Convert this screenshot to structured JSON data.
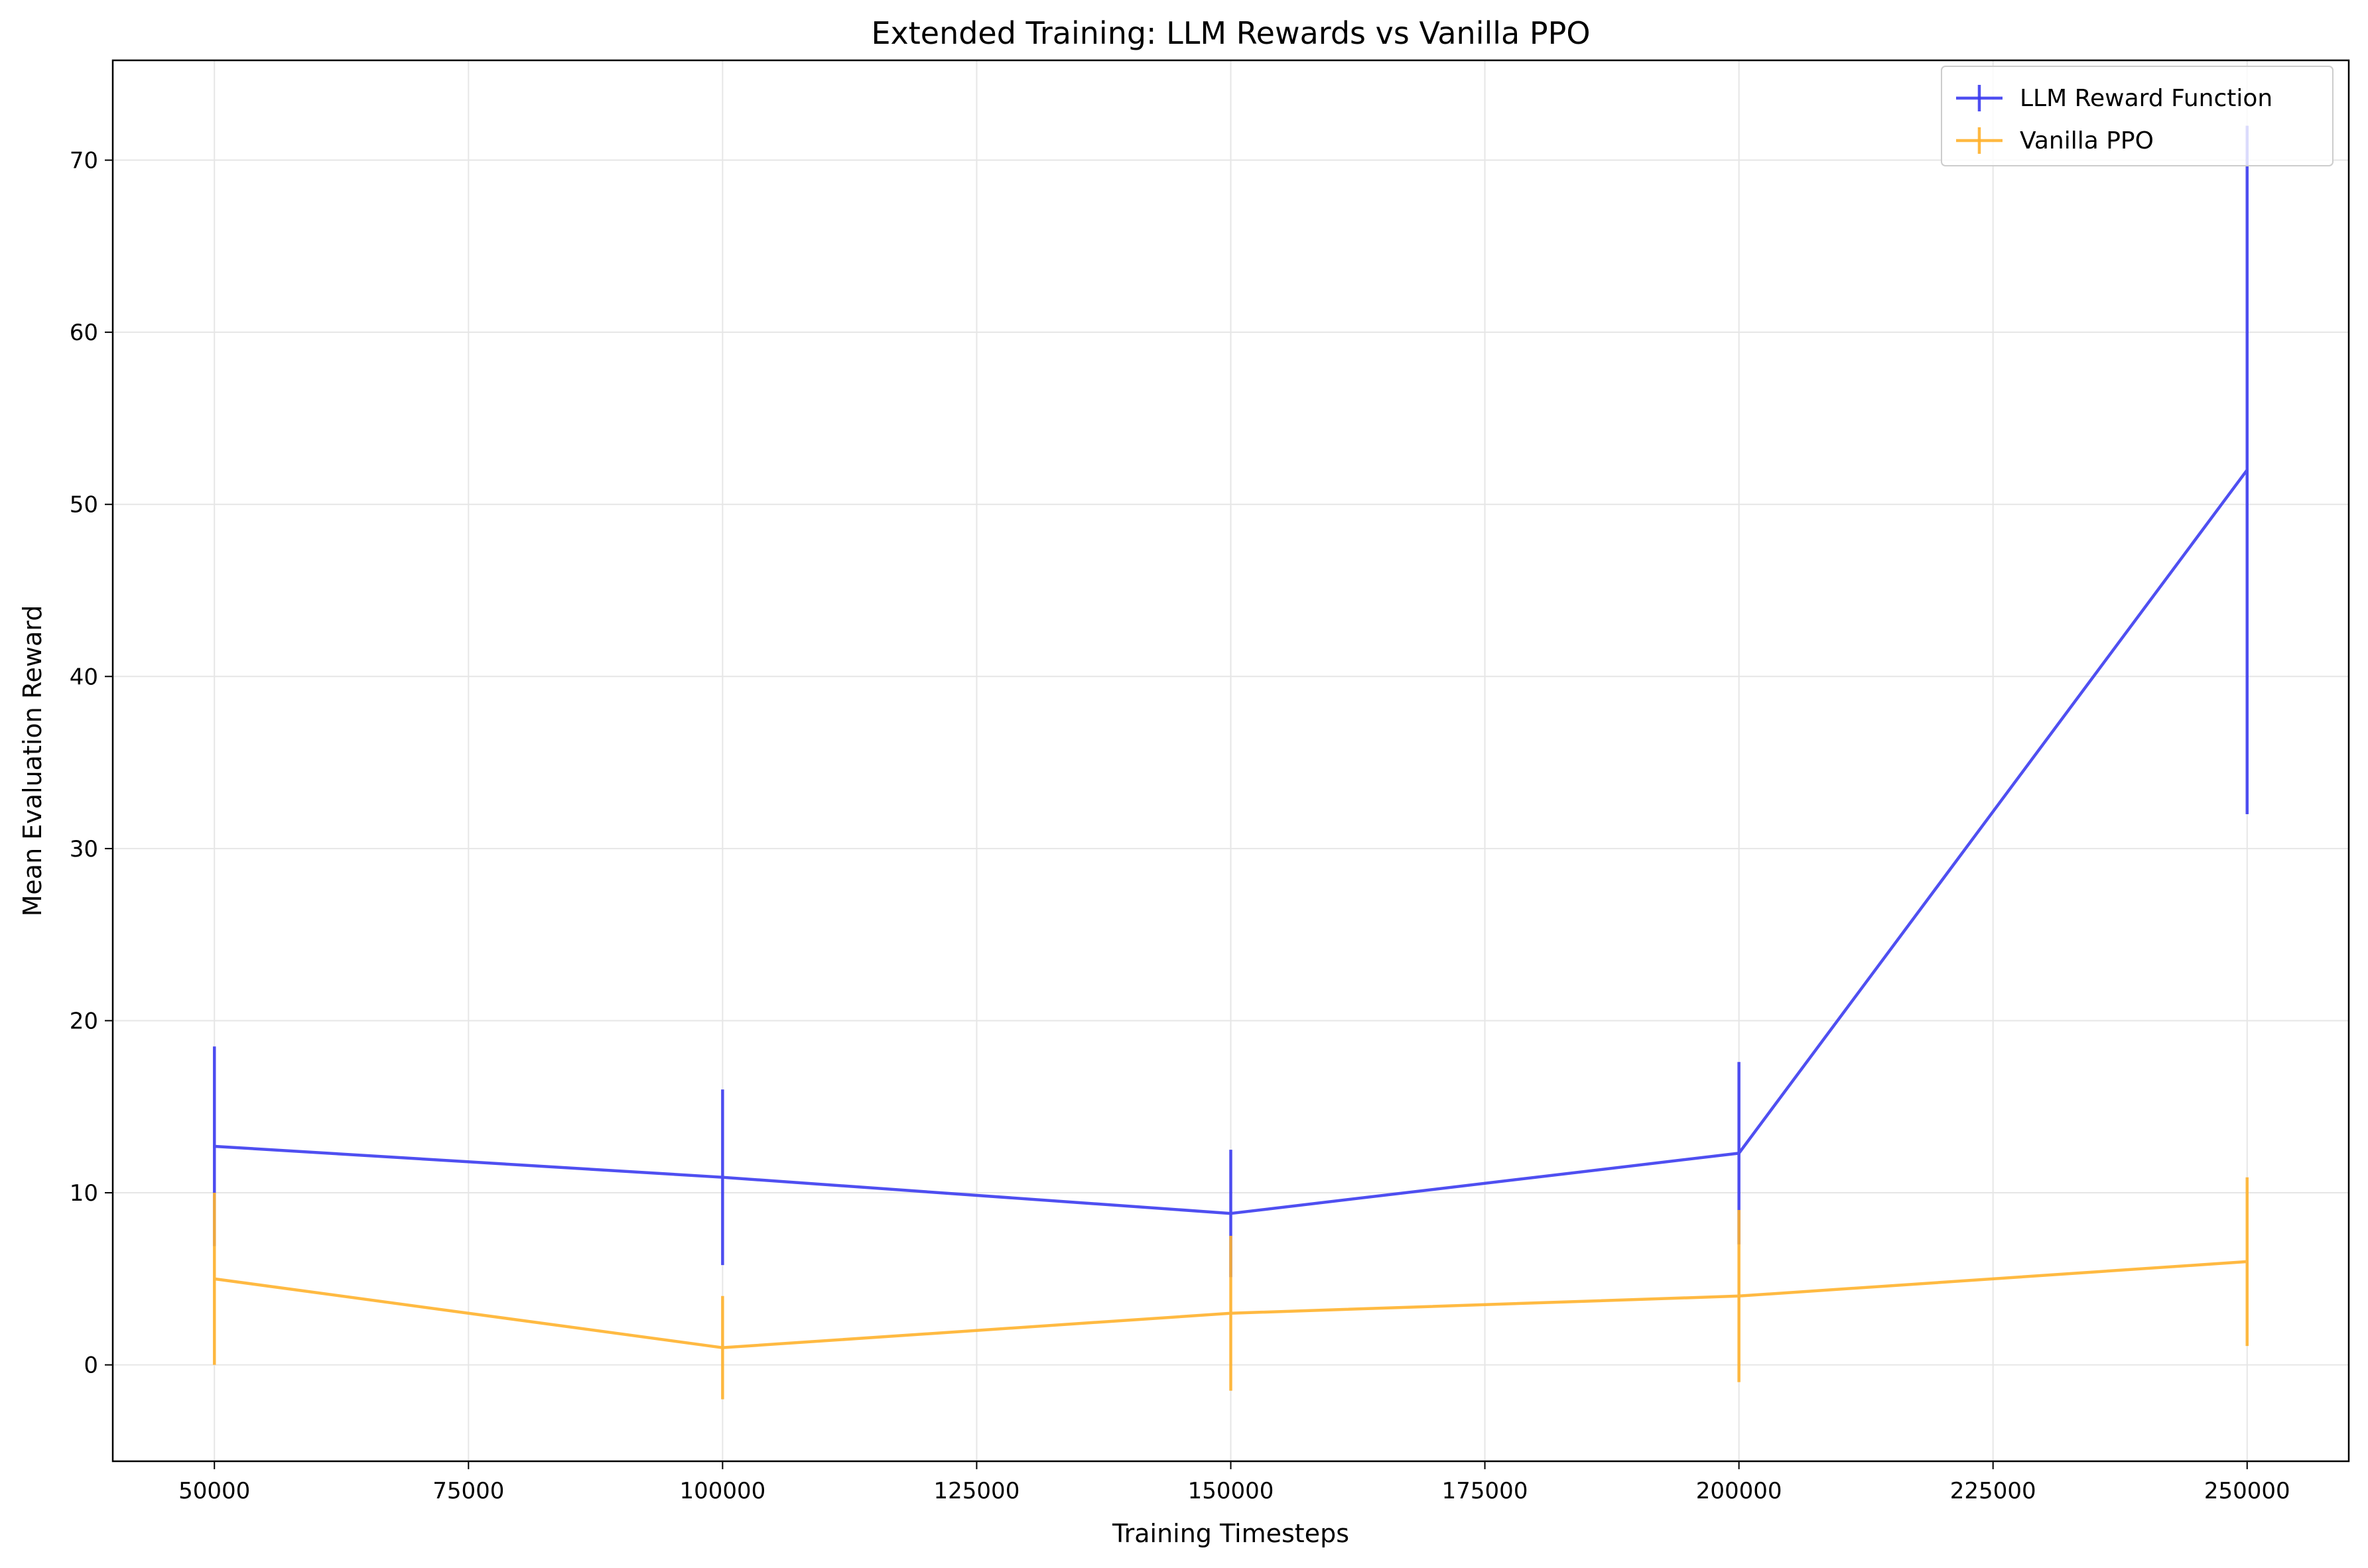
{
  "chart_data": {
    "type": "line",
    "title": "Extended Training: LLM Rewards vs Vanilla PPO",
    "xlabel": "Training Timesteps",
    "ylabel": "Mean Evaluation Reward",
    "xlim": [
      40000,
      260000
    ],
    "ylim": [
      -5.6,
      75.8
    ],
    "xticks": [
      50000,
      75000,
      100000,
      125000,
      150000,
      175000,
      200000,
      225000,
      250000
    ],
    "yticks": [
      0,
      10,
      20,
      30,
      40,
      50,
      60,
      70
    ],
    "grid": true,
    "legend_position": "top-right",
    "x": [
      50000,
      100000,
      150000,
      200000,
      250000
    ],
    "series": [
      {
        "name": "LLM Reward Function",
        "color": "#3c3cf0",
        "values": [
          12.7,
          10.9,
          8.8,
          12.3,
          52.0
        ],
        "error": [
          5.8,
          5.1,
          3.7,
          5.3,
          20.0
        ]
      },
      {
        "name": "Vanilla PPO",
        "color": "#ffb22e",
        "values": [
          5.0,
          1.0,
          3.0,
          4.0,
          6.0
        ],
        "error": [
          5.0,
          3.0,
          4.5,
          5.0,
          4.9
        ]
      }
    ]
  }
}
